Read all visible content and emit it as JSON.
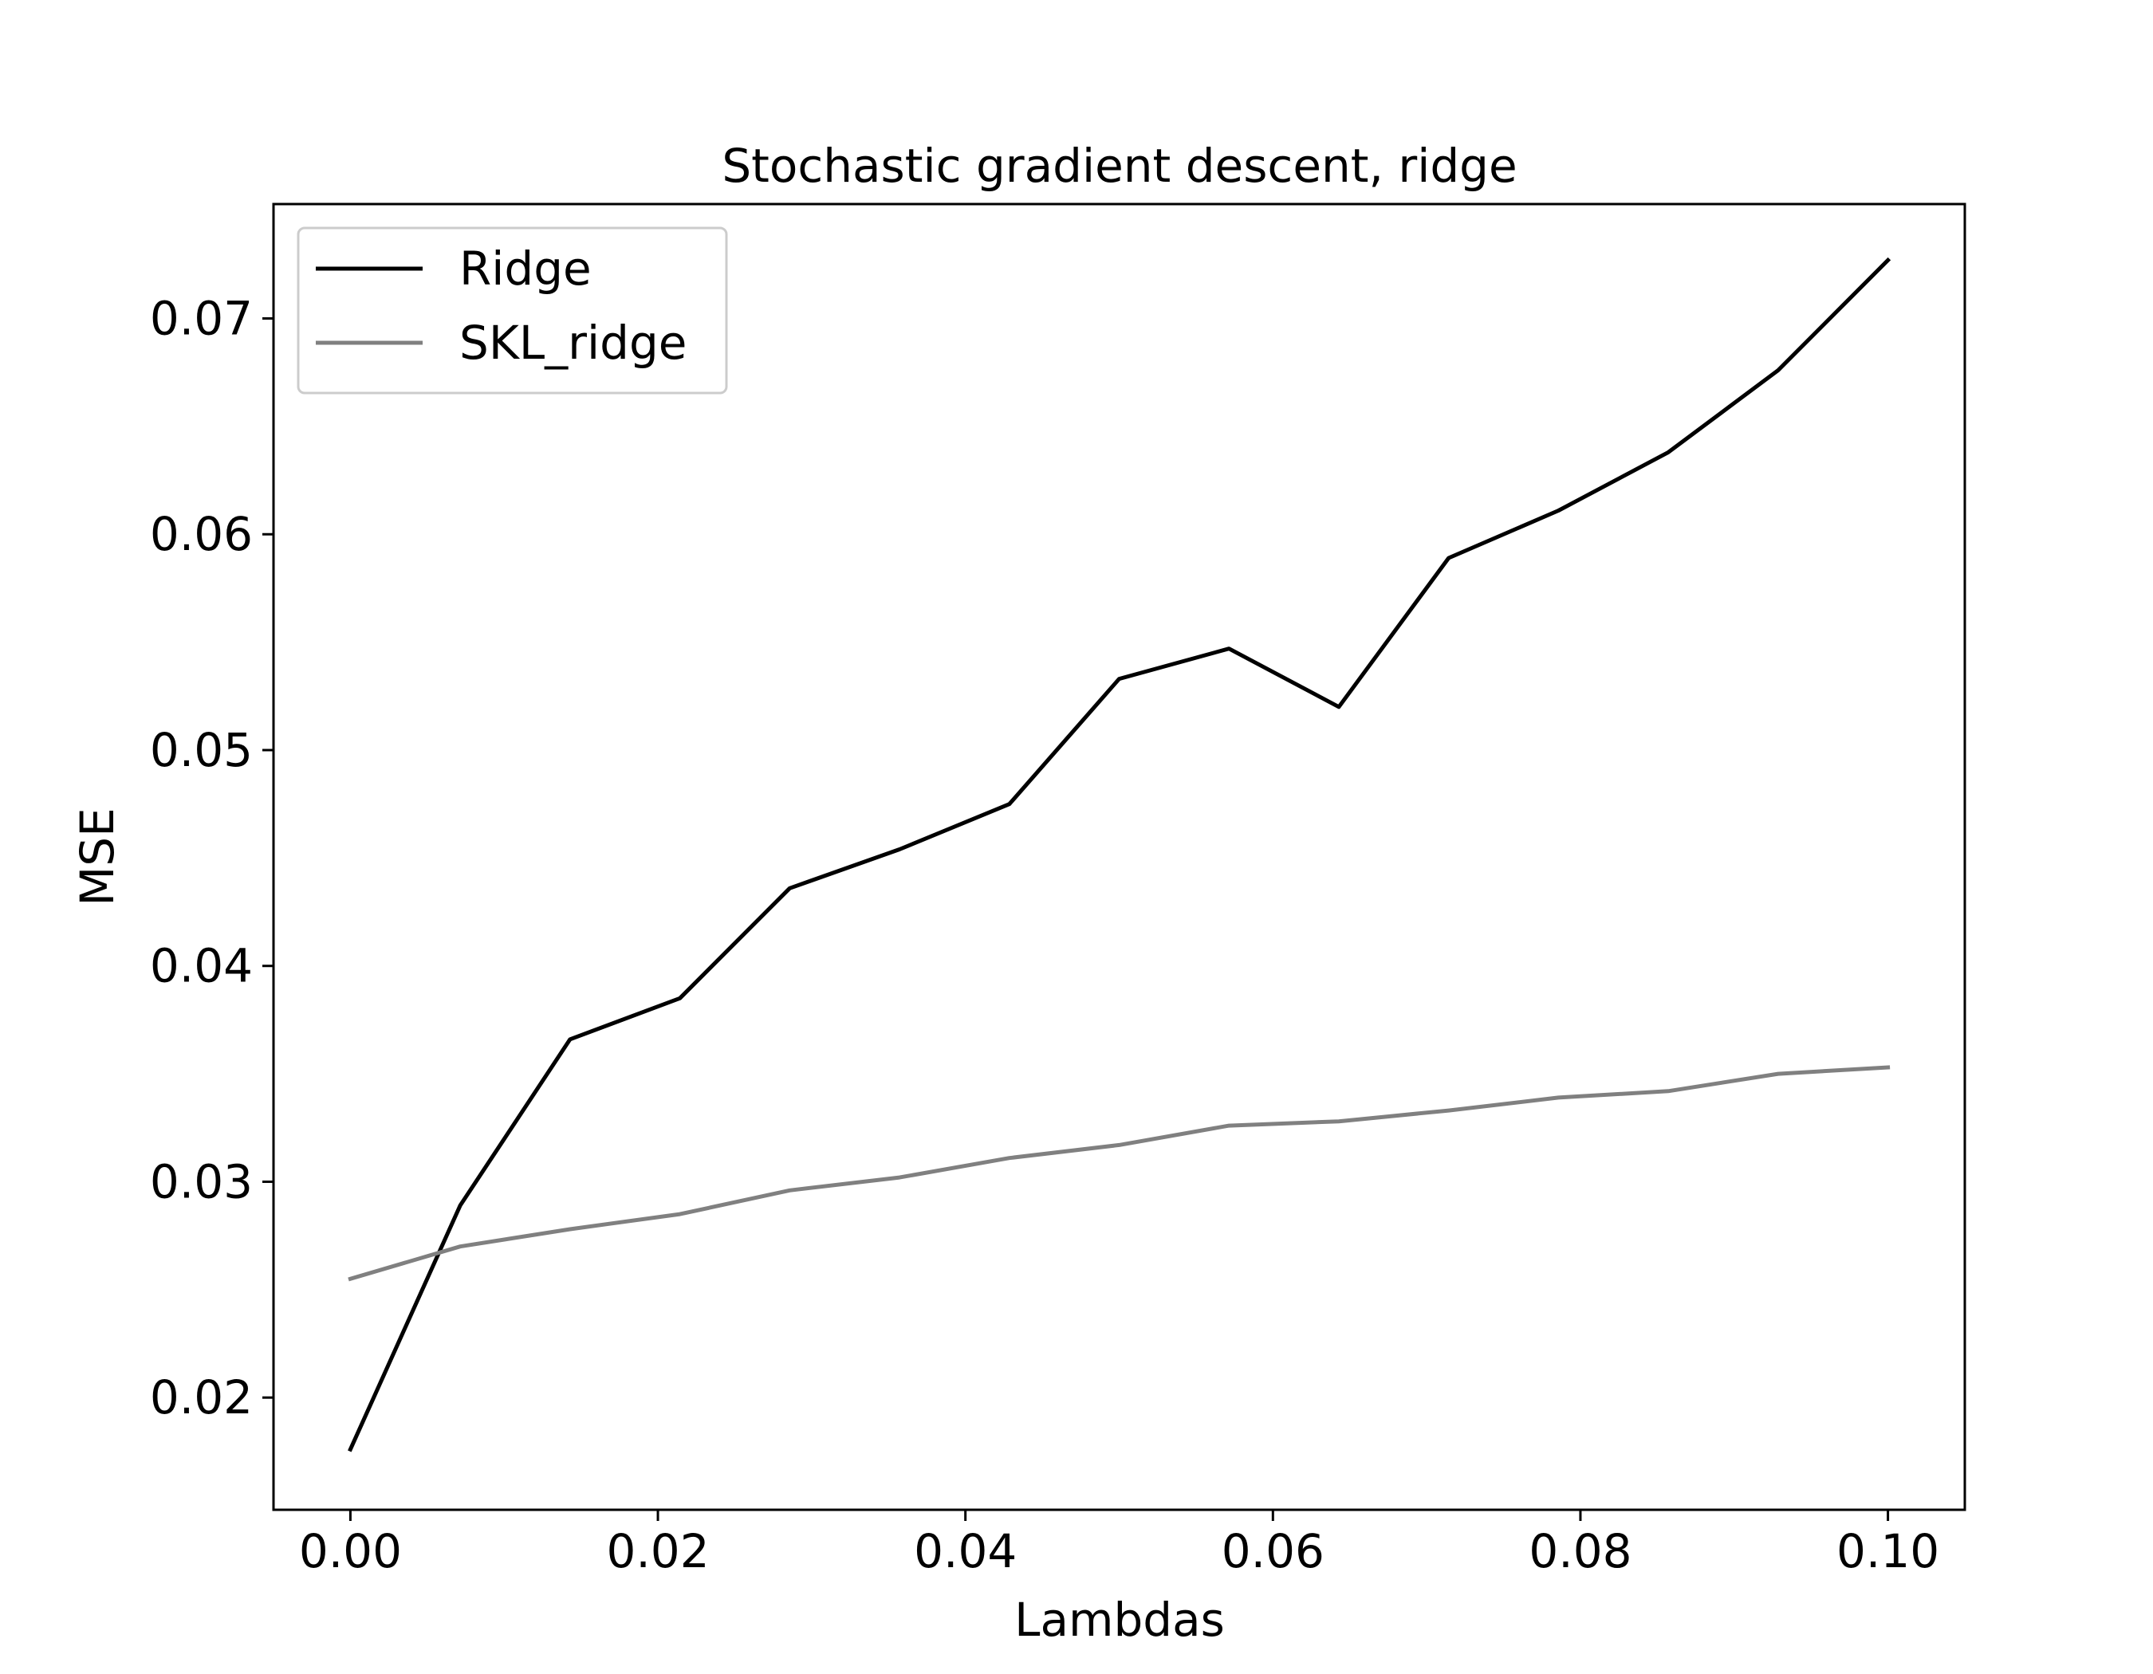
{
  "chart_data": {
    "type": "line",
    "title": "Stochastic gradient descent, ridge",
    "xlabel": "Lambdas",
    "ylabel": "MSE",
    "xlim": [
      -0.005,
      0.105
    ],
    "ylim": [
      0.0148,
      0.0753
    ],
    "xticks": [
      0.0,
      0.02,
      0.04,
      0.06,
      0.08,
      0.1
    ],
    "xtick_labels": [
      "0.00",
      "0.02",
      "0.04",
      "0.06",
      "0.08",
      "0.10"
    ],
    "yticks": [
      0.02,
      0.03,
      0.04,
      0.05,
      0.06,
      0.07
    ],
    "ytick_labels": [
      "0.02",
      "0.03",
      "0.04",
      "0.05",
      "0.06",
      "0.07"
    ],
    "grid": false,
    "legend_position": "top-left",
    "x": [
      0.0,
      0.00714,
      0.01429,
      0.02143,
      0.02857,
      0.03571,
      0.04286,
      0.05,
      0.05714,
      0.06429,
      0.07143,
      0.07857,
      0.08571,
      0.09286,
      0.1
    ],
    "series": [
      {
        "name": "Ridge",
        "color": "#000000",
        "values": [
          0.0176,
          0.0289,
          0.0366,
          0.0385,
          0.0436,
          0.0454,
          0.0475,
          0.0533,
          0.0547,
          0.052,
          0.0589,
          0.0611,
          0.0638,
          0.0676,
          0.0727
        ]
      },
      {
        "name": "SKL_ridge",
        "color": "#808080",
        "values": [
          0.0255,
          0.027,
          0.0278,
          0.0285,
          0.0296,
          0.0302,
          0.0311,
          0.0317,
          0.0326,
          0.0328,
          0.0333,
          0.0339,
          0.0342,
          0.035,
          0.0353
        ]
      }
    ]
  }
}
